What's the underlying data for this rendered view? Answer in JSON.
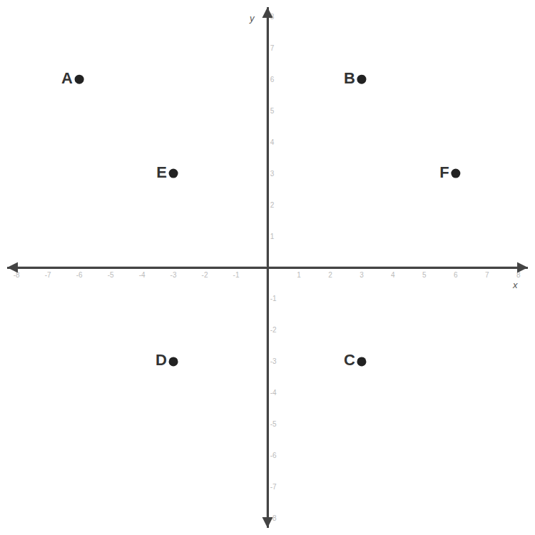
{
  "chart_data": {
    "type": "scatter",
    "xlabel": "x",
    "ylabel": "y",
    "point_labels": [
      "A",
      "B",
      "C",
      "D",
      "E",
      "F"
    ],
    "x": [
      -6,
      3,
      3,
      -3,
      -3,
      6
    ],
    "values": [
      6,
      6,
      -3,
      -3,
      3,
      3
    ],
    "color": "#222222",
    "xlim": [
      -8.3,
      8.3
    ],
    "ylim": [
      -8.3,
      8.3
    ],
    "xticks": [
      -8,
      -7,
      -6,
      -5,
      -4,
      -3,
      -2,
      -1,
      1,
      2,
      3,
      4,
      5,
      6,
      7,
      8
    ],
    "yticks": [
      -8,
      -7,
      -6,
      -5,
      -4,
      -3,
      -2,
      -1,
      1,
      2,
      3,
      4,
      5,
      6,
      7,
      8
    ],
    "grid": false
  }
}
